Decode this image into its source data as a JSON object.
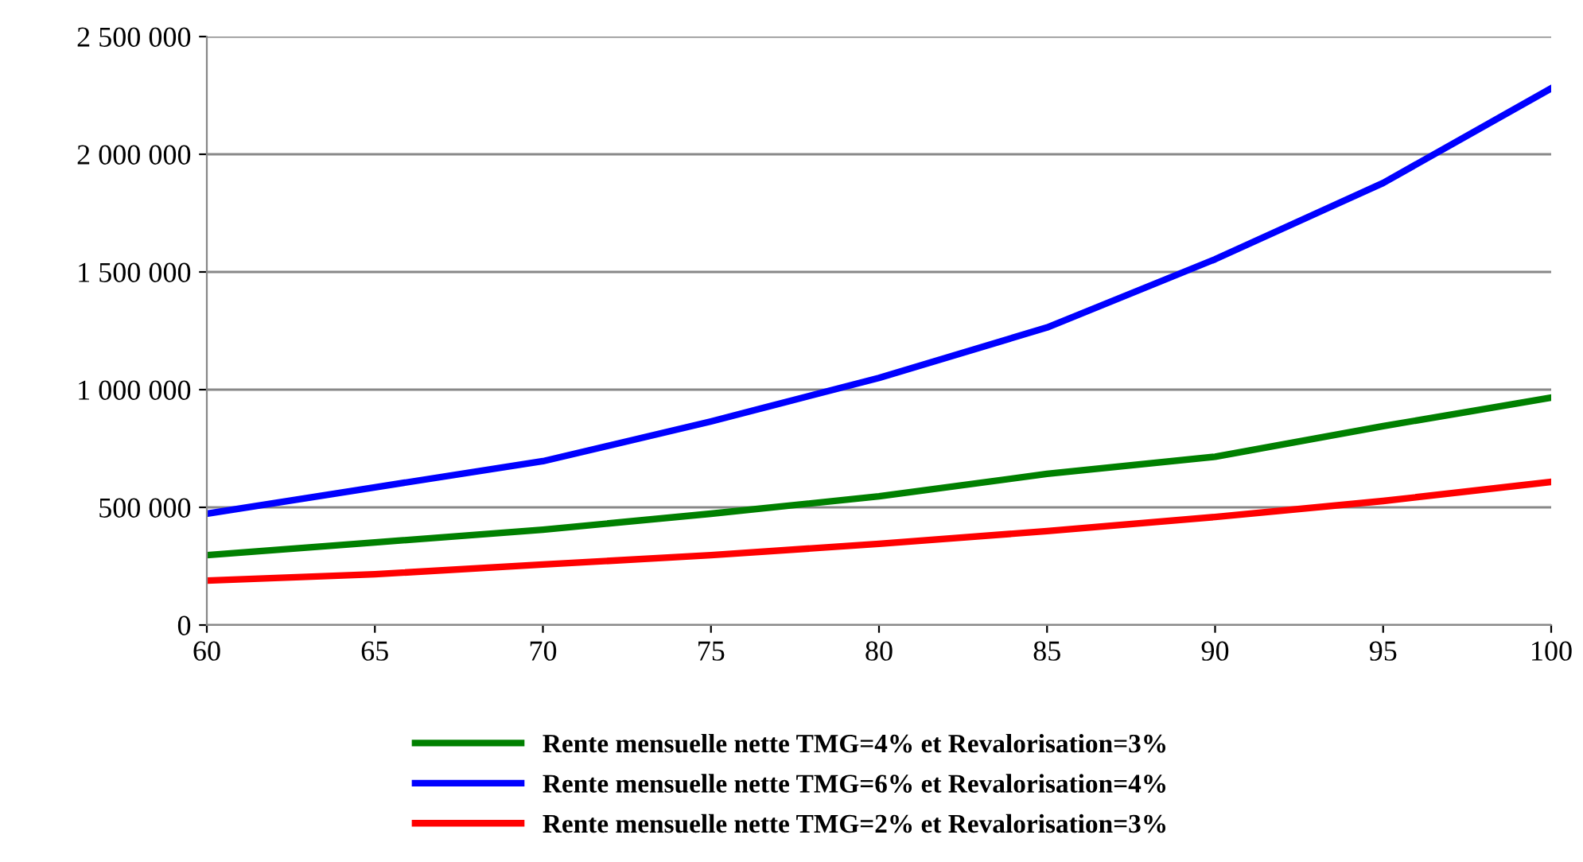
{
  "chart_data": {
    "type": "line",
    "x": [
      60,
      65,
      70,
      75,
      80,
      85,
      90,
      95,
      100
    ],
    "series": [
      {
        "name": "Rente mensuelle nette TMG=4% et Revalorisation=3%",
        "color": "#008000",
        "values": [
          297000,
          351000,
          405000,
          473000,
          547000,
          642000,
          715000,
          845000,
          966000
        ]
      },
      {
        "name": "Rente mensuelle nette TMG=6% et Revalorisation=4%",
        "color": "#0000ff",
        "values": [
          473000,
          585000,
          696000,
          865000,
          1050000,
          1264000,
          1554000,
          1878000,
          2280000
        ]
      },
      {
        "name": "Rente mensuelle nette TMG=2% et Revalorisation=3%",
        "color": "#ff0000",
        "values": [
          189000,
          216000,
          257000,
          297000,
          345000,
          399000,
          459000,
          527000,
          608000
        ]
      }
    ],
    "xlim": [
      60,
      100
    ],
    "xticks": [
      60,
      65,
      70,
      75,
      80,
      85,
      90,
      95,
      100
    ],
    "ylim": [
      0,
      2500000
    ],
    "yticks": [
      {
        "value": 0,
        "label": "0"
      },
      {
        "value": 500000,
        "label": "500 000"
      },
      {
        "value": 1000000,
        "label": "1 000 000"
      },
      {
        "value": 1500000,
        "label": "1 500 000"
      },
      {
        "value": 2000000,
        "label": "2 000 000"
      },
      {
        "value": 2500000,
        "label": "2 500 000"
      }
    ],
    "grid": "y",
    "legend": "bottom",
    "marker": "none",
    "line_style": "solid"
  }
}
